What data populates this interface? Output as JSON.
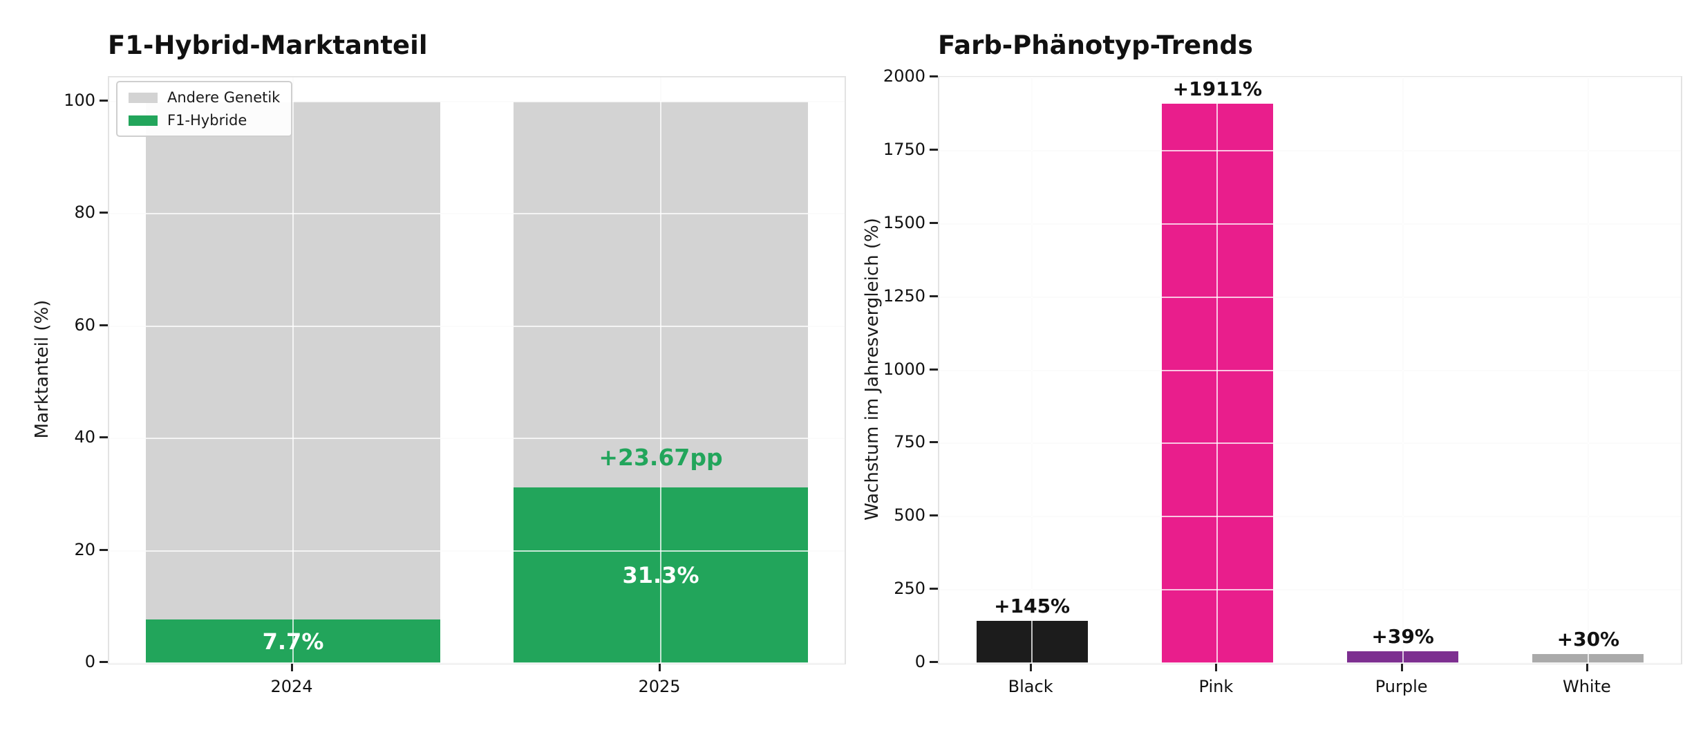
{
  "figure": {
    "background": "#ffffff"
  },
  "chart_data": [
    {
      "type": "bar",
      "stacked": true,
      "title": "F1-Hybrid-Marktanteil",
      "ylabel": "Marktanteil (%)",
      "xlabel": "",
      "categories": [
        "2024",
        "2025"
      ],
      "series": [
        {
          "name": "F1-Hybride",
          "color": "#22a55b",
          "values": [
            7.7,
            31.3
          ],
          "labels": [
            "7.7%",
            "31.3%"
          ],
          "label_color": "#ffffff"
        },
        {
          "name": "Andere Genetik",
          "color": "#d3d3d3",
          "values": [
            92.3,
            68.7
          ]
        }
      ],
      "legend": [
        {
          "label": "Andere Genetik",
          "color": "#d3d3d3"
        },
        {
          "label": "F1-Hybride",
          "color": "#22a55b"
        }
      ],
      "legend_position": "upper left",
      "ylim": [
        0,
        104.3
      ],
      "yticks": [
        0,
        20,
        40,
        60,
        80,
        100
      ],
      "grid": true,
      "annotations": [
        {
          "text": "+23.67pp",
          "category_index": 1,
          "value": 31.3,
          "color": "#22a55b"
        }
      ]
    },
    {
      "type": "bar",
      "stacked": false,
      "title": "Farb-Phänotyp-Trends",
      "ylabel": "Wachstum im Jahresvergleich (%)",
      "xlabel": "",
      "categories": [
        "Black",
        "Pink",
        "Purple",
        "White"
      ],
      "values": [
        145,
        1911,
        39,
        30
      ],
      "colors": [
        "#1c1c1c",
        "#e91e8c",
        "#7d2f90",
        "#aaaaaa"
      ],
      "bar_labels": [
        "+145%",
        "+1911%",
        "+39%",
        "+30%"
      ],
      "ylim": [
        0,
        2000
      ],
      "yticks": [
        0,
        250,
        500,
        750,
        1000,
        1250,
        1500,
        1750,
        2000
      ],
      "grid": true
    }
  ]
}
